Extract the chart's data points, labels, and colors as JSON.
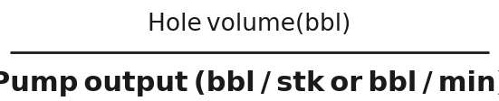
{
  "numerator": "Hole volume(bbl)",
  "denominator": "Pump output (bbl / stk or bbl / min)",
  "line_color": "#1a1a1a",
  "line_width": 2.0,
  "text_color": "#1a1a1a",
  "background_color": "#ffffff",
  "fontsize_numerator": 19,
  "fontsize_denominator": 22,
  "font_weight_numerator": "normal",
  "font_weight_denominator": "bold"
}
